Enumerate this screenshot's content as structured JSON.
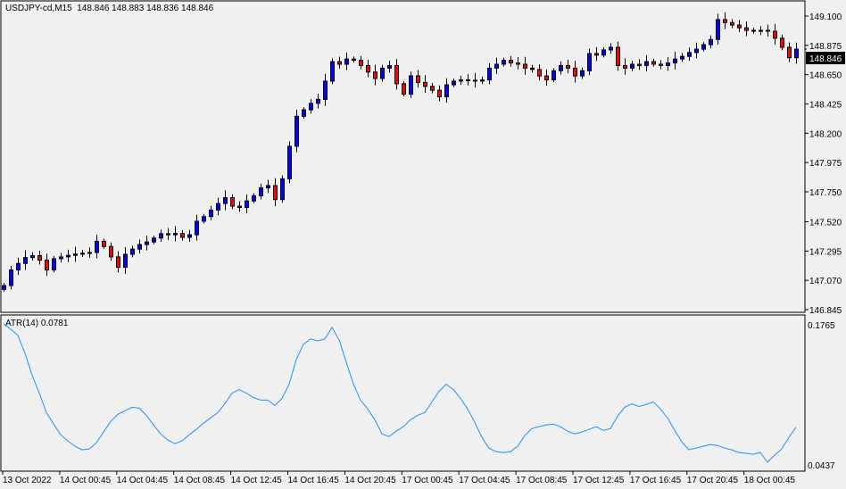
{
  "chart_title": {
    "symbol": "USDJPY-cd,M15",
    "ohlc": "148.846 148.883 148.836 148.846"
  },
  "current_price_label": "148.846",
  "colors": {
    "bull_body": "#0000ff",
    "bear_body": "#ff0000",
    "wick": "#000000",
    "atr_line": "#1e90ff",
    "background": "#f0f0f0",
    "price_tag": "#000000"
  },
  "chart_data": [
    {
      "type": "candlestick",
      "title": "USDJPY-cd,M15",
      "ylim": [
        146.845,
        149.1
      ],
      "y_ticks": [
        "149.100",
        "148.875",
        "148.650",
        "148.425",
        "148.200",
        "147.975",
        "147.750",
        "147.520",
        "147.295",
        "147.070",
        "146.845"
      ],
      "x_ticks": [
        "13 Oct 2022",
        "14 Oct 00:45",
        "14 Oct 04:45",
        "14 Oct 08:45",
        "14 Oct 12:45",
        "14 Oct 16:45",
        "14 Oct 20:45",
        "17 Oct 00:45",
        "17 Oct 04:45",
        "17 Oct 08:45",
        "17 Oct 12:45",
        "17 Oct 16:45",
        "17 Oct 20:45",
        "18 Oct 00:45"
      ],
      "close": [
        147.03,
        147.15,
        147.2,
        147.245,
        147.26,
        147.225,
        147.15,
        147.236,
        147.25,
        147.262,
        147.272,
        147.278,
        147.284,
        147.37,
        147.33,
        147.25,
        147.17,
        147.27,
        147.31,
        147.345,
        147.365,
        147.395,
        147.428,
        147.42,
        147.43,
        147.4,
        147.42,
        147.524,
        147.56,
        147.61,
        147.66,
        147.705,
        147.64,
        147.63,
        147.68,
        147.72,
        147.78,
        147.798,
        147.69,
        147.85,
        148.1,
        148.33,
        148.38,
        148.43,
        148.46,
        148.6,
        148.75,
        148.73,
        148.77,
        148.76,
        148.72,
        148.67,
        148.62,
        148.7,
        148.72,
        148.58,
        148.5,
        148.641,
        148.59,
        148.56,
        148.53,
        148.48,
        148.572,
        148.6,
        148.61,
        148.607,
        148.6,
        148.61,
        148.7,
        148.73,
        148.76,
        148.74,
        148.73,
        148.7,
        148.69,
        148.64,
        148.61,
        148.68,
        148.72,
        148.7,
        148.64,
        148.68,
        148.812,
        148.8,
        148.84,
        148.86,
        148.72,
        148.7,
        148.73,
        148.72,
        148.75,
        148.73,
        148.72,
        148.74,
        148.77,
        148.79,
        148.82,
        148.846,
        148.88,
        148.92,
        149.073,
        149.05,
        149.031,
        149.01,
        148.99,
        148.983,
        148.99,
        148.983,
        148.93,
        148.86,
        148.78,
        148.846
      ]
    },
    {
      "type": "line",
      "title": "ATR(14) 0.0781",
      "series": [
        {
          "name": "ATR(14)",
          "values": [
            0.1748,
            0.1699,
            0.1641,
            0.1475,
            0.1267,
            0.1101,
            0.0918,
            0.0811,
            0.0711,
            0.0653,
            0.0603,
            0.057,
            0.0578,
            0.0636,
            0.0736,
            0.0835,
            0.0902,
            0.0935,
            0.0968,
            0.096,
            0.0893,
            0.0802,
            0.0719,
            0.0661,
            0.0628,
            0.0653,
            0.0711,
            0.0761,
            0.0819,
            0.0869,
            0.0918,
            0.1001,
            0.1101,
            0.1134,
            0.1101,
            0.1059,
            0.1035,
            0.1035,
            0.0985,
            0.1051,
            0.1184,
            0.1416,
            0.1558,
            0.1607,
            0.1591,
            0.1607,
            0.1715,
            0.1599,
            0.1392,
            0.1184,
            0.1035,
            0.0952,
            0.0852,
            0.0719,
            0.0694,
            0.0744,
            0.0786,
            0.0852,
            0.0893,
            0.0918,
            0.1018,
            0.1118,
            0.1184,
            0.1134,
            0.1051,
            0.0952,
            0.0827,
            0.0686,
            0.0586,
            0.0553,
            0.0545,
            0.0553,
            0.0603,
            0.0703,
            0.0769,
            0.0786,
            0.0802,
            0.081,
            0.0786,
            0.0744,
            0.0719,
            0.0736,
            0.0761,
            0.0786,
            0.0752,
            0.0769,
            0.0885,
            0.0968,
            0.1001,
            0.0976,
            0.0993,
            0.1018,
            0.0952,
            0.0869,
            0.0752,
            0.0644,
            0.057,
            0.0586,
            0.0603,
            0.062,
            0.0611,
            0.0586,
            0.057,
            0.0545,
            0.0537,
            0.0528,
            0.0545,
            0.0454,
            0.052,
            0.0578,
            0.0686,
            0.0781
          ]
        }
      ],
      "ylim": [
        0.0437,
        0.1765
      ],
      "y_ticks": [
        "0.1765",
        "0.0437"
      ]
    }
  ]
}
